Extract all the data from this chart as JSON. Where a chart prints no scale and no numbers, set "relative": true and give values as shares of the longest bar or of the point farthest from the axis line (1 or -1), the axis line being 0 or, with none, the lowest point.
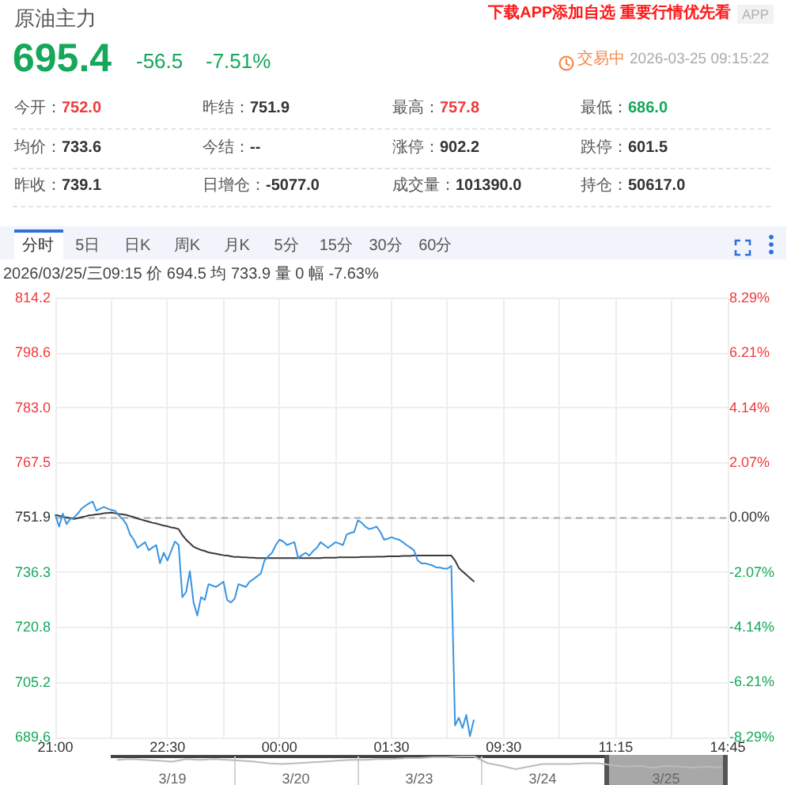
{
  "chart_data": [
    {
      "type": "other",
      "title": "原油主力",
      "annotations": [
        "下载APP添加自选 重要行情优先看",
        "APP",
        "695.4",
        "-56.5",
        "-7.51%",
        "交易中",
        "2026-03-25 09:15:22",
        "今开：752.0",
        "昨结：751.9",
        "最高：757.8",
        "最低：686.0",
        "均价：733.6",
        "今结：--",
        "涨停：902.2",
        "跌停：601.5",
        "昨收：739.1",
        "日增仓：-5077.0",
        "成交量：101390.0",
        "持仓：50617.0"
      ]
    },
    {
      "type": "line",
      "annotations": [
        "分时",
        "5日",
        "日K",
        "周K",
        "月K",
        "5分",
        "15分",
        "30分",
        "60分",
        "2026/03/25/三09:15 价 694.5 均 733.9 量 0 幅 -7.63%"
      ],
      "categories": [
        "21:00",
        null,
        null,
        null,
        null,
        null,
        null,
        null,
        null,
        null,
        null,
        null,
        null,
        null,
        null,
        null,
        null,
        null,
        null,
        null,
        null,
        null,
        null,
        null,
        null,
        null,
        null,
        null,
        null,
        null,
        "22:30",
        null,
        null,
        null,
        null,
        null,
        null,
        null,
        null,
        null,
        null,
        null,
        null,
        null,
        null,
        null,
        null,
        null,
        null,
        null,
        null,
        null,
        null,
        null,
        null,
        null,
        null,
        null,
        null,
        null,
        "00:00",
        null,
        null,
        null,
        null,
        null,
        null,
        null,
        null,
        null,
        null,
        null,
        null,
        null,
        null,
        null,
        null,
        null,
        null,
        null,
        null,
        null,
        null,
        null,
        null,
        null,
        null,
        null,
        null,
        null,
        "01:30",
        null,
        null,
        null,
        null,
        null,
        null,
        null,
        null,
        null,
        null,
        null,
        null,
        null,
        null,
        null,
        null,
        null,
        null,
        null,
        null,
        null,
        null,
        null,
        null,
        null,
        null,
        null,
        null,
        null,
        "09:30",
        null,
        null,
        null,
        null,
        null,
        null,
        null,
        null,
        null,
        null,
        null,
        null,
        null,
        null,
        null,
        null,
        null,
        null,
        null,
        null,
        null,
        null,
        null,
        null,
        null,
        null,
        null,
        null,
        null,
        "11:15",
        null,
        null,
        null,
        null,
        null,
        null,
        null,
        null,
        null,
        null,
        null,
        null,
        null,
        null,
        null,
        null,
        null,
        null,
        null,
        null,
        null,
        null,
        null,
        null,
        null,
        null,
        null,
        null,
        null,
        "14:45"
      ],
      "ylim": [
        689.6,
        814.2
      ],
      "yticks": [
        689.6,
        {
          "value": 705.175,
          "label": "705.2"
        },
        {
          "value": 720.75,
          "label": "720.8"
        },
        {
          "value": 736.325,
          "label": "736.3"
        },
        751.9,
        {
          "value": 767.475,
          "label": "767.5"
        },
        {
          "value": 783.05,
          "label": "783.0"
        },
        {
          "value": 798.625,
          "label": "798.6"
        },
        814.2
      ],
      "y2lim": [
        -8.29,
        8.29
      ],
      "y2ticks": [
        {
          "value": -8.29,
          "label": "-8.29%"
        },
        {
          "value": -6.21,
          "label": "-6.21%"
        },
        {
          "value": -4.14,
          "label": "-4.14%"
        },
        {
          "value": -2.07,
          "label": "-2.07%"
        },
        {
          "value": 0,
          "label": "0.00%"
        },
        {
          "value": 2.07,
          "label": "2.07%"
        },
        {
          "value": 4.14,
          "label": "4.14%"
        },
        {
          "value": 6.21,
          "label": "6.21%"
        },
        {
          "value": 8.29,
          "label": "8.29%"
        }
      ],
      "grid": true,
      "marker": "none",
      "line_style": "solid",
      "ref_lines": [
        {
          "axis": "y",
          "value": 751.9,
          "color": "#aaaaaa",
          "line_style": "dashed"
        }
      ],
      "series": [
        {
          "color": "#3a94e0",
          "values": [
            752.7,
            749.4,
            753.1,
            750.1,
            751.6,
            752.0,
            753.1,
            754.5,
            755.3,
            756.0,
            756.5,
            753.9,
            754.5,
            755.0,
            754.5,
            754.1,
            753.9,
            752.5,
            751.6,
            750.1,
            747.2,
            745.7,
            743.4,
            744.2,
            745.0,
            742.7,
            743.5,
            744.2,
            739.0,
            742.0,
            739.8,
            742.5,
            745.2,
            744.2,
            729.4,
            730.9,
            736.8,
            727.9,
            724.2,
            729.4,
            728.6,
            733.1,
            732.7,
            732.3,
            733.0,
            733.8,
            728.6,
            727.9,
            729.0,
            733.1,
            732.7,
            732.3,
            733.8,
            734.5,
            735.3,
            736.1,
            739.8,
            741.0,
            742.0,
            744.2,
            745.7,
            745.2,
            744.2,
            744.6,
            745.0,
            740.5,
            741.3,
            742.0,
            741.2,
            742.5,
            743.4,
            745.0,
            744.2,
            743.4,
            744.2,
            745.0,
            744.6,
            744.2,
            747.2,
            747.6,
            747.9,
            751.2,
            750.5,
            749.4,
            748.7,
            749.0,
            749.4,
            747.9,
            745.7,
            746.0,
            746.4,
            746.0,
            745.7,
            745.0,
            744.2,
            743.5,
            742.7,
            739.8,
            739.0,
            739.0,
            738.7,
            738.4,
            737.8,
            737.8,
            737.5,
            737.5,
            738.3,
            693.0,
            695.2,
            692.3,
            696.0,
            690.0,
            694.5,
            null,
            null,
            null,
            null,
            null,
            null,
            null,
            null,
            null,
            null,
            null,
            null,
            null,
            null,
            null,
            null,
            null,
            null,
            null,
            null,
            null,
            null,
            null,
            null,
            null,
            null,
            null,
            null,
            null,
            null,
            null,
            null,
            null,
            null,
            null,
            null,
            null,
            null,
            null,
            null,
            null,
            null,
            null,
            null,
            null,
            null,
            null,
            null,
            null,
            null,
            null,
            null,
            null,
            null,
            null,
            null,
            null,
            null,
            null,
            null,
            null,
            null,
            null,
            null,
            null,
            null,
            null,
            null
          ]
        },
        {
          "color": "#3a3a3a",
          "values": [
            752.7,
            752.5,
            752.2,
            752.0,
            751.8,
            751.6,
            751.8,
            752.1,
            752.3,
            752.6,
            752.7,
            752.9,
            753.0,
            753.2,
            753.3,
            753.4,
            753.2,
            753.0,
            752.9,
            752.7,
            752.4,
            752.1,
            751.7,
            751.4,
            751.1,
            750.8,
            750.5,
            750.3,
            750.0,
            749.7,
            749.5,
            749.2,
            749.0,
            748.7,
            747.0,
            745.7,
            744.7,
            743.7,
            743.2,
            742.8,
            742.5,
            742.1,
            741.9,
            741.7,
            741.5,
            741.3,
            741.2,
            741.0,
            740.8,
            740.8,
            740.7,
            740.7,
            740.6,
            740.6,
            740.5,
            740.5,
            740.5,
            740.5,
            740.5,
            740.5,
            740.5,
            740.5,
            740.5,
            740.5,
            740.5,
            740.5,
            740.5,
            740.5,
            740.5,
            740.5,
            740.5,
            740.5,
            740.6,
            740.6,
            740.6,
            740.6,
            740.7,
            740.7,
            740.7,
            740.7,
            740.7,
            740.7,
            740.8,
            740.8,
            740.8,
            740.8,
            740.9,
            740.9,
            740.9,
            741.0,
            741.0,
            741.0,
            741.0,
            741.1,
            741.1,
            741.1,
            741.2,
            741.2,
            741.2,
            741.2,
            741.2,
            741.2,
            741.2,
            741.2,
            741.2,
            741.2,
            741.2,
            739.8,
            737.7,
            736.7,
            735.8,
            734.8,
            733.9,
            null,
            null,
            null,
            null,
            null,
            null,
            null,
            null,
            null,
            null,
            null,
            null,
            null,
            null,
            null,
            null,
            null,
            null,
            null,
            null,
            null,
            null,
            null,
            null,
            null,
            null,
            null,
            null,
            null,
            null,
            null,
            null,
            null,
            null,
            null,
            null,
            null,
            null,
            null,
            null,
            null,
            null,
            null,
            null,
            null,
            null,
            null,
            null,
            null,
            null,
            null,
            null,
            null,
            null,
            null,
            null,
            null,
            null,
            null,
            null,
            null,
            null,
            null,
            null,
            null,
            null,
            null,
            null
          ]
        }
      ]
    },
    {
      "type": "line",
      "relative": true,
      "tick_labels": "x",
      "marker": "none",
      "color": "#bbbbbb",
      "categories": [
        null,
        null,
        null,
        null,
        "3/19",
        null,
        null,
        null,
        null,
        null,
        null,
        null,
        null,
        "3/20",
        null,
        null,
        null,
        null,
        null,
        null,
        null,
        null,
        "3/23",
        null,
        null,
        null,
        null,
        null,
        null,
        null,
        null,
        "3/24",
        null,
        null,
        null,
        null,
        null,
        null,
        null,
        null,
        "3/25",
        null,
        null,
        null,
        null
      ],
      "values": [
        0.73,
        0.8,
        0.73,
        0.67,
        0.6,
        0.8,
        0.73,
        0.8,
        0.73,
        0.67,
        0.6,
        0.47,
        0.4,
        0.47,
        0.53,
        0.6,
        0.67,
        0.73,
        0.73,
        0.8,
        0.8,
        0.87,
        0.87,
        0.93,
        0.93,
        1,
        1,
        0.47,
        0.27,
        0,
        0.2,
        0.4,
        0.4,
        0.4,
        0.47,
        0.47,
        0.33,
        0.2,
        0.27,
        0.13,
        0.27,
        0.2,
        0.13,
        0.2,
        0.13
      ]
    }
  ]
}
